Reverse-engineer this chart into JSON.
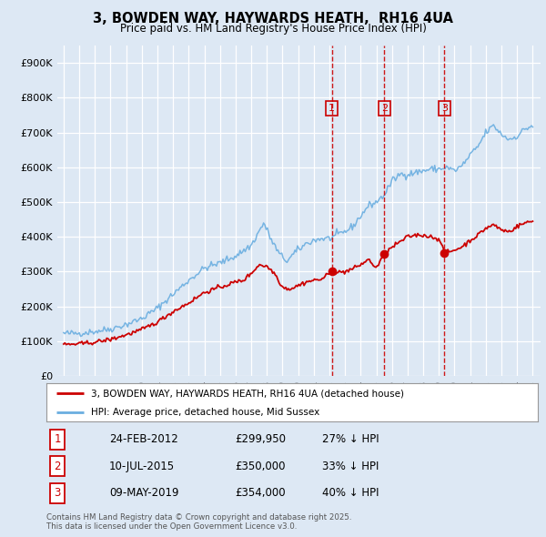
{
  "title": "3, BOWDEN WAY, HAYWARDS HEATH,  RH16 4UA",
  "subtitle": "Price paid vs. HM Land Registry's House Price Index (HPI)",
  "bg_color": "#dde8f4",
  "plot_bg_color": "#dde8f4",
  "red_line_label": "3, BOWDEN WAY, HAYWARDS HEATH, RH16 4UA (detached house)",
  "blue_line_label": "HPI: Average price, detached house, Mid Sussex",
  "footer": "Contains HM Land Registry data © Crown copyright and database right 2025.\nThis data is licensed under the Open Government Licence v3.0.",
  "transactions": [
    {
      "num": 1,
      "date": "24-FEB-2012",
      "price": 299950,
      "pct": "27%",
      "direction": "↓"
    },
    {
      "num": 2,
      "date": "10-JUL-2015",
      "price": 350000,
      "pct": "33%",
      "direction": "↓"
    },
    {
      "num": 3,
      "date": "09-MAY-2019",
      "price": 354000,
      "pct": "40%",
      "direction": "↓"
    }
  ],
  "transaction_dates_decimal": [
    2012.15,
    2015.52,
    2019.36
  ],
  "transaction_prices": [
    299950,
    350000,
    354000
  ],
  "ylim": [
    0,
    950000
  ],
  "yticks": [
    0,
    100000,
    200000,
    300000,
    400000,
    500000,
    600000,
    700000,
    800000,
    900000
  ],
  "xlim_start": 1994.6,
  "xlim_end": 2025.5,
  "red_color": "#cc0000",
  "blue_color": "#6aaee0",
  "dashed_red": "#cc0000",
  "marker_color": "#cc0000",
  "hpi_anchors": [
    [
      1995.0,
      122000
    ],
    [
      1996.0,
      123000
    ],
    [
      1997.0,
      128000
    ],
    [
      1998.0,
      135000
    ],
    [
      1999.0,
      148000
    ],
    [
      2000.0,
      165000
    ],
    [
      2001.0,
      195000
    ],
    [
      2002.0,
      235000
    ],
    [
      2003.0,
      275000
    ],
    [
      2004.0,
      310000
    ],
    [
      2005.0,
      325000
    ],
    [
      2006.0,
      345000
    ],
    [
      2007.0,
      375000
    ],
    [
      2007.8,
      440000
    ],
    [
      2008.3,
      390000
    ],
    [
      2008.8,
      350000
    ],
    [
      2009.3,
      330000
    ],
    [
      2009.8,
      355000
    ],
    [
      2010.5,
      380000
    ],
    [
      2011.0,
      390000
    ],
    [
      2011.5,
      395000
    ],
    [
      2012.0,
      395000
    ],
    [
      2012.5,
      405000
    ],
    [
      2013.0,
      415000
    ],
    [
      2013.5,
      430000
    ],
    [
      2014.0,
      460000
    ],
    [
      2014.5,
      490000
    ],
    [
      2015.0,
      500000
    ],
    [
      2015.5,
      520000
    ],
    [
      2016.0,
      560000
    ],
    [
      2016.5,
      580000
    ],
    [
      2017.0,
      580000
    ],
    [
      2017.5,
      585000
    ],
    [
      2018.0,
      590000
    ],
    [
      2018.5,
      595000
    ],
    [
      2019.0,
      595000
    ],
    [
      2019.5,
      600000
    ],
    [
      2020.0,
      590000
    ],
    [
      2020.5,
      605000
    ],
    [
      2021.0,
      635000
    ],
    [
      2021.5,
      660000
    ],
    [
      2022.0,
      700000
    ],
    [
      2022.5,
      720000
    ],
    [
      2023.0,
      695000
    ],
    [
      2023.5,
      680000
    ],
    [
      2024.0,
      690000
    ],
    [
      2024.5,
      710000
    ],
    [
      2025.0,
      720000
    ]
  ],
  "red_anchors": [
    [
      1995.0,
      90000
    ],
    [
      1996.0,
      92000
    ],
    [
      1997.0,
      97000
    ],
    [
      1998.0,
      105000
    ],
    [
      1999.0,
      118000
    ],
    [
      2000.0,
      133000
    ],
    [
      2001.0,
      155000
    ],
    [
      2002.0,
      185000
    ],
    [
      2003.0,
      210000
    ],
    [
      2004.0,
      240000
    ],
    [
      2005.0,
      255000
    ],
    [
      2006.0,
      270000
    ],
    [
      2006.5,
      275000
    ],
    [
      2007.0,
      295000
    ],
    [
      2007.5,
      320000
    ],
    [
      2008.0,
      315000
    ],
    [
      2008.5,
      295000
    ],
    [
      2009.0,
      255000
    ],
    [
      2009.5,
      250000
    ],
    [
      2010.0,
      260000
    ],
    [
      2010.5,
      270000
    ],
    [
      2011.0,
      275000
    ],
    [
      2011.5,
      278000
    ],
    [
      2012.15,
      299950
    ],
    [
      2012.5,
      297000
    ],
    [
      2013.0,
      300000
    ],
    [
      2013.5,
      308000
    ],
    [
      2014.0,
      320000
    ],
    [
      2014.5,
      335000
    ],
    [
      2015.0,
      310000
    ],
    [
      2015.52,
      350000
    ],
    [
      2016.0,
      370000
    ],
    [
      2016.5,
      385000
    ],
    [
      2017.0,
      400000
    ],
    [
      2017.5,
      405000
    ],
    [
      2018.0,
      405000
    ],
    [
      2018.5,
      400000
    ],
    [
      2019.0,
      395000
    ],
    [
      2019.36,
      354000
    ],
    [
      2019.8,
      358000
    ],
    [
      2020.0,
      362000
    ],
    [
      2020.5,
      372000
    ],
    [
      2021.0,
      390000
    ],
    [
      2021.5,
      405000
    ],
    [
      2022.0,
      425000
    ],
    [
      2022.5,
      435000
    ],
    [
      2023.0,
      420000
    ],
    [
      2023.5,
      415000
    ],
    [
      2024.0,
      430000
    ],
    [
      2024.5,
      440000
    ],
    [
      2025.0,
      445000
    ]
  ]
}
